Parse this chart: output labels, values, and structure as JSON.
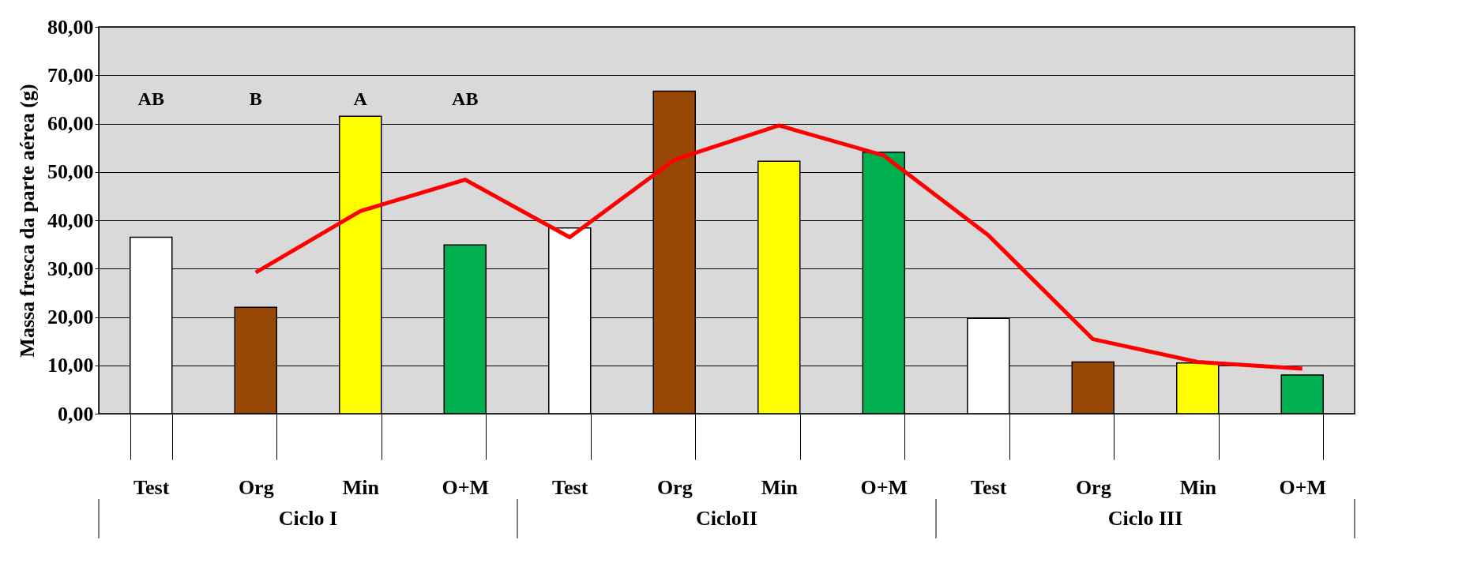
{
  "chart_data": {
    "type": "bar",
    "ylabel": "Massa fresca da parte aérea (g)",
    "categories": [
      "Test",
      "Org",
      "Min",
      "O+M",
      "Test",
      "Org",
      "Min",
      "O+M",
      "Test",
      "Org",
      "Min",
      "O+M"
    ],
    "values": [
      36.5,
      22.0,
      61.5,
      34.9,
      38.4,
      66.7,
      52.2,
      54.1,
      19.7,
      10.7,
      10.5,
      8.0
    ],
    "colors": [
      "#ffffff",
      "#974706",
      "#ffff00",
      "#00b050",
      "#ffffff",
      "#974706",
      "#ffff00",
      "#00b050",
      "#ffffff",
      "#974706",
      "#ffff00",
      "#00b050"
    ],
    "series": [
      {
        "type": "line",
        "color": "#ff0000",
        "values": [
          null,
          29.2,
          41.9,
          48.4,
          36.5,
          52.5,
          59.6,
          53.4,
          36.9,
          15.4,
          10.7,
          9.3
        ]
      }
    ],
    "ylim": [
      0,
      80
    ],
    "yticks": [
      {
        "value": 0,
        "label": "0,00"
      },
      {
        "value": 10,
        "label": "10,00"
      },
      {
        "value": 20,
        "label": "20,00"
      },
      {
        "value": 30,
        "label": "30,00"
      },
      {
        "value": 40,
        "label": "40,00"
      },
      {
        "value": 50,
        "label": "50,00"
      },
      {
        "value": 60,
        "label": "60,00"
      },
      {
        "value": 70,
        "label": "70,00"
      },
      {
        "value": 80,
        "label": "80,00"
      }
    ],
    "grid": "y",
    "annotations": [
      "AB",
      "B",
      "A",
      "AB",
      "Ciclo I",
      "CicloII",
      "Ciclo III"
    ]
  }
}
